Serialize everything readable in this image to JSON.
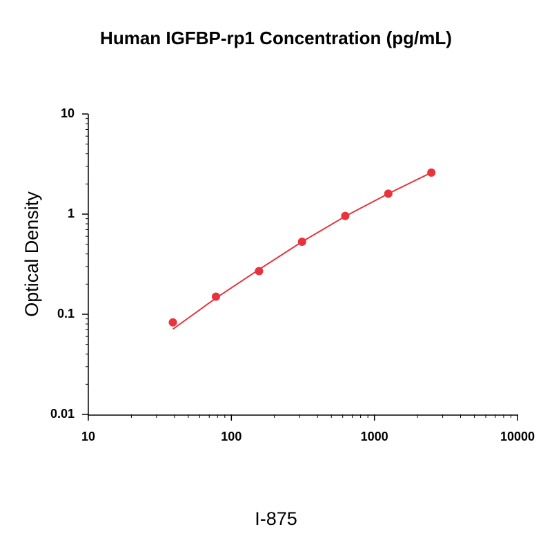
{
  "chart_data": {
    "type": "scatter",
    "title": "Human IGFBP-rp1 Concentration (pg/mL)",
    "y_label": "Optical Density",
    "footer": "I-875",
    "log_x": true,
    "log_y": true,
    "xlim": [
      10,
      10000
    ],
    "xticks": [
      10,
      100,
      1000,
      10000
    ],
    "ylim": [
      0.01,
      10
    ],
    "yticks": [
      0.01,
      0.1,
      1,
      10
    ],
    "color": "#e8323c",
    "x": [
      39,
      78,
      156,
      312,
      625,
      1250,
      2500
    ],
    "values": [
      0.083,
      0.15,
      0.27,
      0.53,
      0.96,
      1.6,
      2.6
    ],
    "curve": {
      "x": [
        39,
        78,
        156,
        312,
        625,
        1250,
        2500
      ],
      "y": [
        0.071,
        0.145,
        0.28,
        0.53,
        0.95,
        1.6,
        2.6
      ]
    }
  }
}
